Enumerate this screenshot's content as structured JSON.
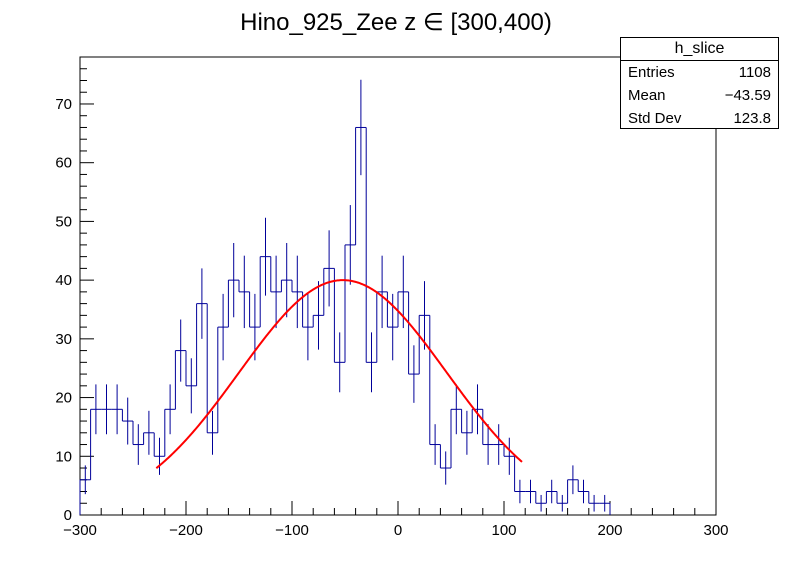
{
  "chart_data": {
    "type": "histogram",
    "title": "Hino_925_Zee z  ∈ [300,400)",
    "xlabel": "",
    "ylabel": "",
    "xlim": [
      -300,
      300
    ],
    "ylim": [
      0,
      78
    ],
    "x_ticks": [
      -300,
      -200,
      -100,
      0,
      100,
      200,
      300
    ],
    "x_tick_labels": [
      "−300",
      "−200",
      "−100",
      "0",
      "100",
      "200",
      "300"
    ],
    "y_ticks": [
      0,
      10,
      20,
      30,
      40,
      50,
      60,
      70
    ],
    "y_tick_labels": [
      "0",
      "10",
      "20",
      "30",
      "40",
      "50",
      "60",
      "70"
    ],
    "bin_width": 10,
    "bin_edges_start": -300,
    "counts": [
      6,
      18,
      18,
      18,
      16,
      12,
      14,
      10,
      18,
      28,
      22,
      36,
      14,
      32,
      40,
      38,
      32,
      44,
      38,
      40,
      38,
      32,
      34,
      42,
      26,
      46,
      66,
      26,
      38,
      32,
      38,
      24,
      34,
      12,
      8,
      18,
      14,
      18,
      12,
      12,
      10,
      4,
      4,
      2,
      4,
      2,
      6,
      4,
      2,
      2
    ],
    "colors": {
      "histogram": "#000099",
      "fit": "#ff0000"
    },
    "fit": {
      "type": "gaussian",
      "constant": 40,
      "mean": -52,
      "sigma": 98,
      "x_range": [
        -228,
        117
      ]
    },
    "stats": {
      "title": "h_slice",
      "rows": [
        {
          "label": "Entries",
          "value": "1108"
        },
        {
          "label": "Mean",
          "value": "−43.59"
        },
        {
          "label": "Std Dev",
          "value": "123.8"
        }
      ]
    }
  }
}
